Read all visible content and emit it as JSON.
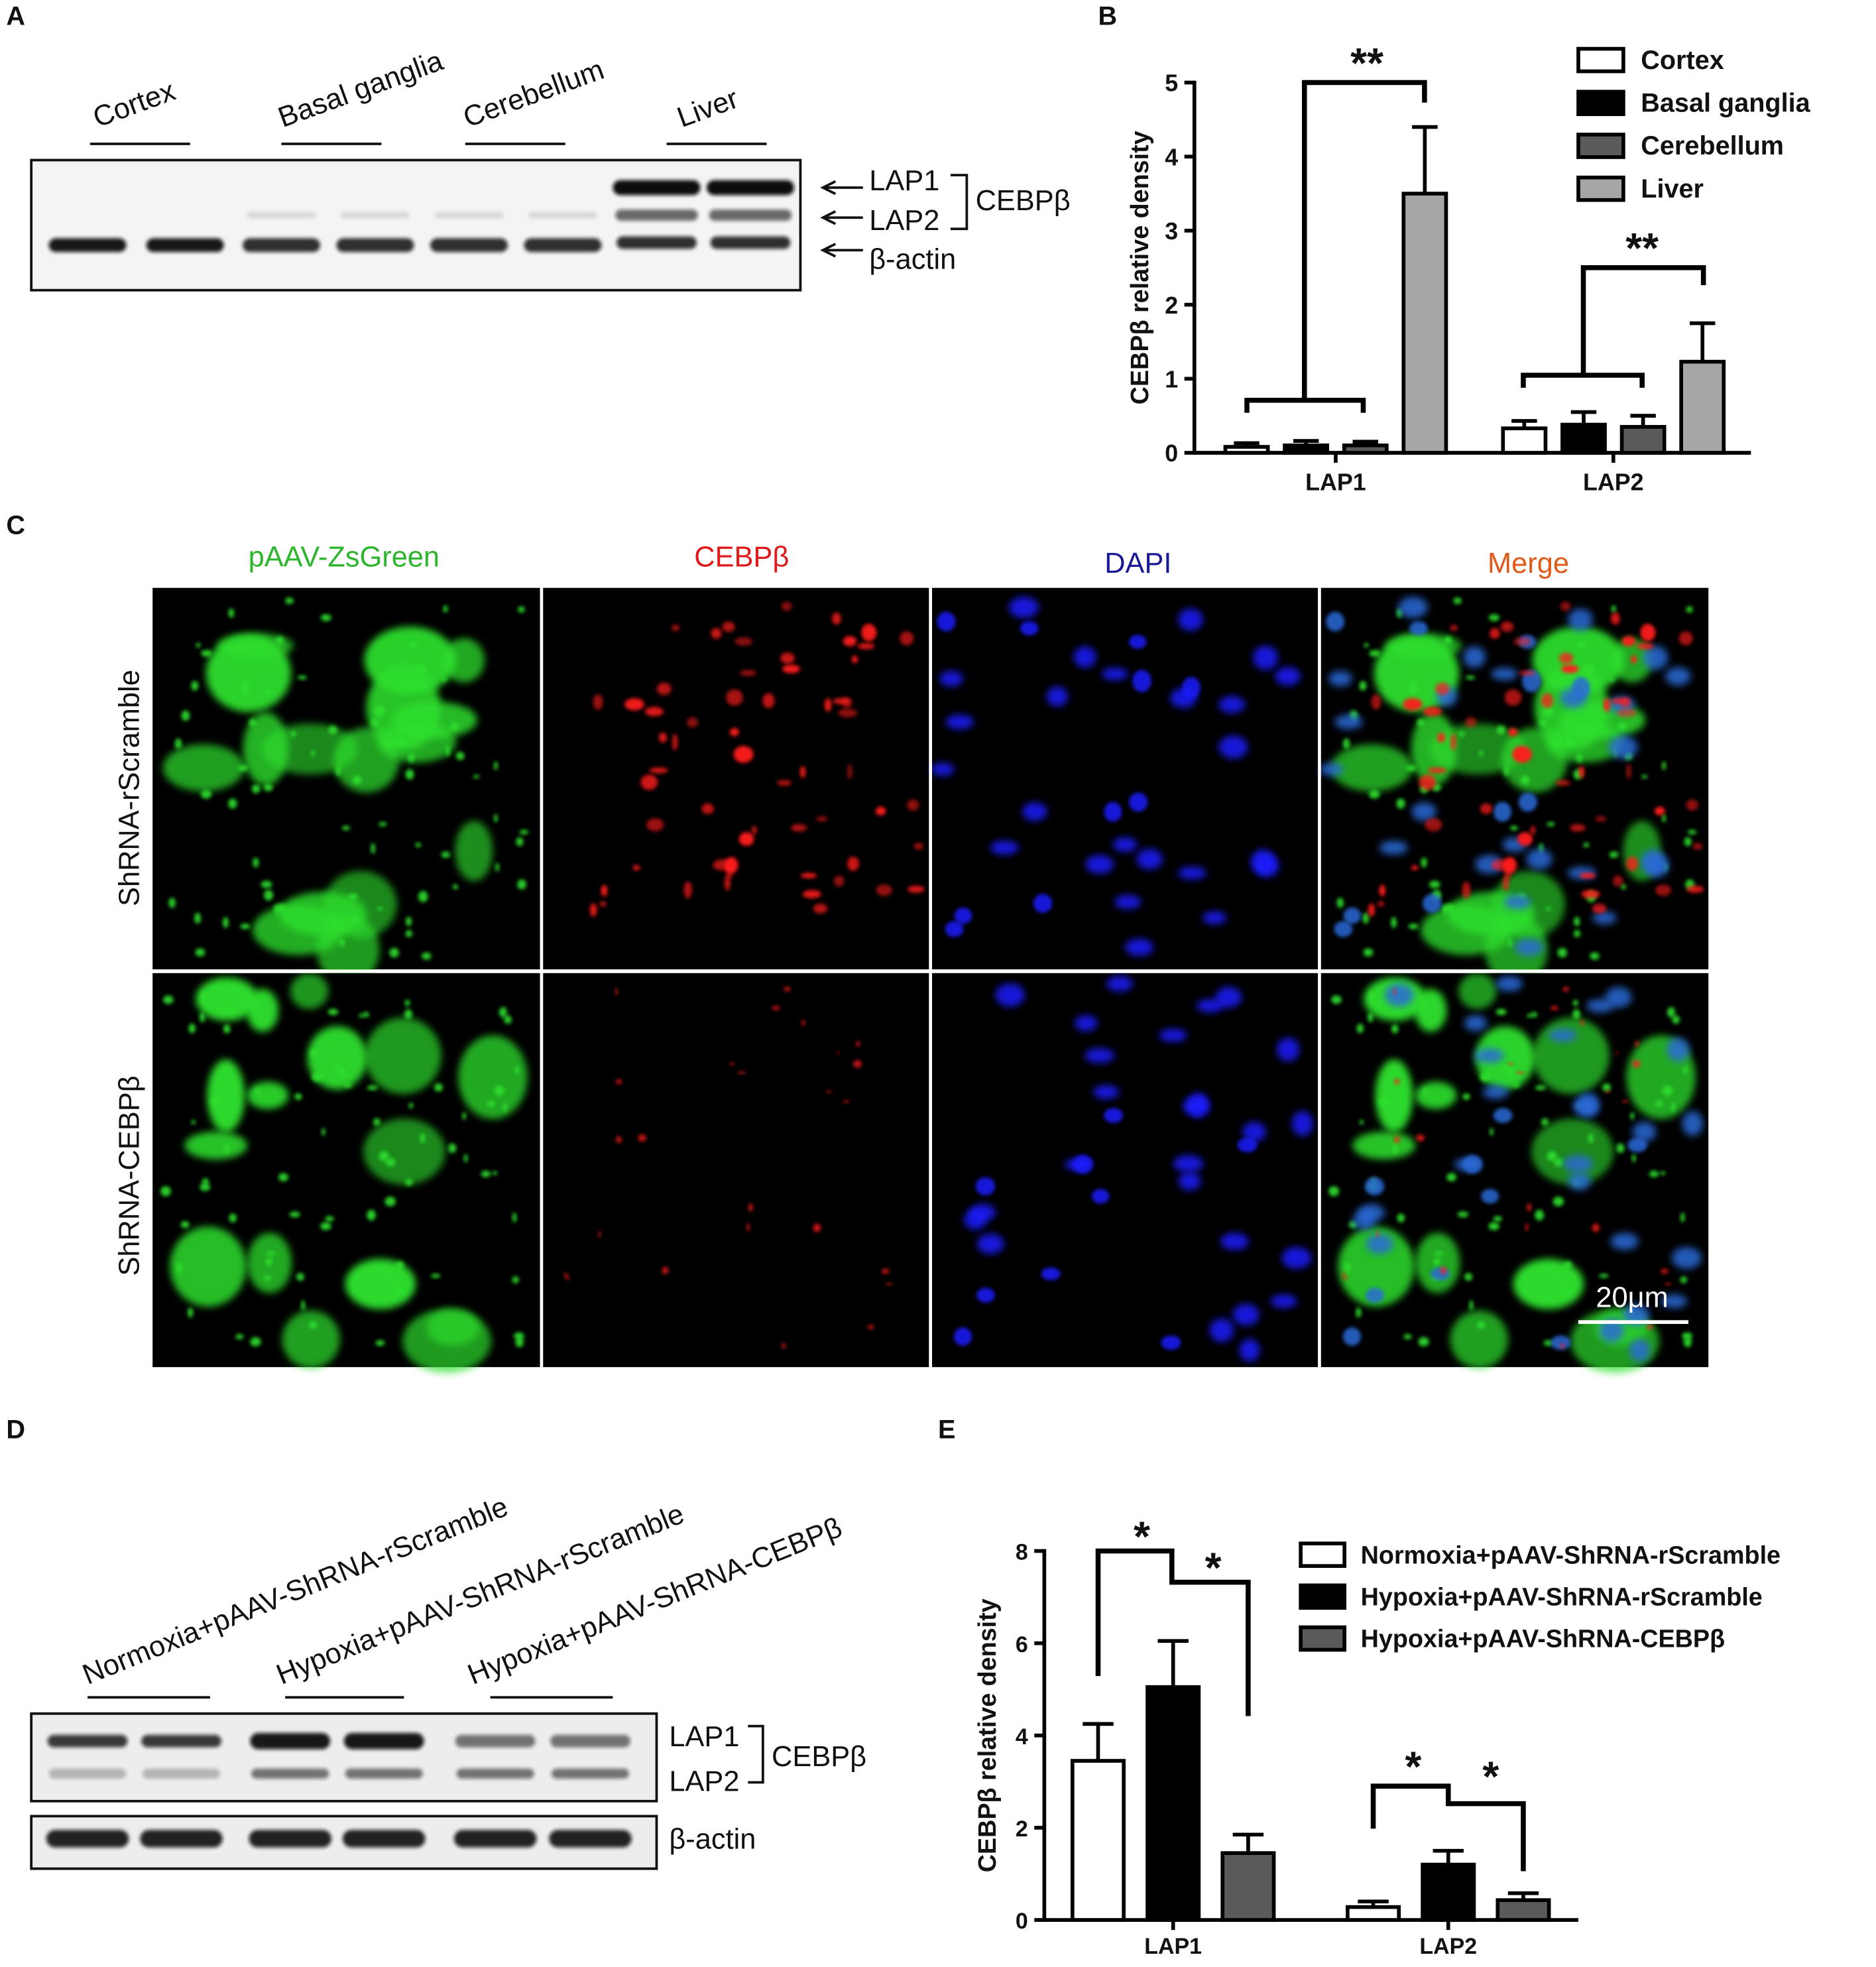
{
  "panel_labels": [
    "A",
    "B",
    "C",
    "D",
    "E"
  ],
  "blot_a": {
    "lanes": [
      "Cortex",
      "Basal ganglia",
      "Cerebellum",
      "Liver"
    ],
    "bands": [
      "LAP1",
      "LAP2",
      "β-actin"
    ],
    "protein": "CEBPβ"
  },
  "panel_c": {
    "columns": [
      "pAAV-ZsGreen",
      "CEBPβ",
      "DAPI",
      "Merge"
    ],
    "rows": [
      "ShRNA-rScramble",
      "ShRNA-CEBPβ"
    ],
    "scale_bar": "20μm"
  },
  "blot_d": {
    "lanes": [
      "Normoxia+pAAV-ShRNA-rScramble",
      "Hypoxia+pAAV-ShRNA-rScramble",
      "Hypoxia+pAAV-ShRNA-CEBPβ"
    ],
    "bands": [
      "LAP1",
      "LAP2",
      "β-actin"
    ],
    "protein": "CEBPβ"
  },
  "chart_data": [
    {
      "type": "bar",
      "ylabel": "CEBPβ relative density",
      "categories": [
        "LAP1",
        "LAP2"
      ],
      "series": [
        {
          "name": "Cortex",
          "color": "#ffffff",
          "values": [
            0.08,
            0.33
          ],
          "errors": [
            0.05,
            0.1
          ]
        },
        {
          "name": "Basal ganglia",
          "color": "#000000",
          "values": [
            0.1,
            0.38
          ],
          "errors": [
            0.06,
            0.17
          ]
        },
        {
          "name": "Cerebellum",
          "color": "#5a5a5a",
          "values": [
            0.1,
            0.35
          ],
          "errors": [
            0.05,
            0.15
          ]
        },
        {
          "name": "Liver",
          "color": "#a6a6a6",
          "values": [
            3.5,
            1.23
          ],
          "errors": [
            0.9,
            0.52
          ]
        }
      ],
      "ylim": [
        0,
        5
      ],
      "yticks": [
        0,
        1,
        2,
        3,
        4,
        5
      ],
      "annotations": [
        "**",
        "**"
      ]
    },
    {
      "type": "bar",
      "ylabel": "CEBPβ relative density",
      "categories": [
        "LAP1",
        "LAP2"
      ],
      "series": [
        {
          "name": "Normoxia+pAAV-ShRNA-rScramble",
          "color": "#ffffff",
          "values": [
            3.45,
            0.28
          ],
          "errors": [
            0.8,
            0.12
          ]
        },
        {
          "name": "Hypoxia+pAAV-ShRNA-rScramble",
          "color": "#000000",
          "values": [
            5.05,
            1.2
          ],
          "errors": [
            1.0,
            0.3
          ]
        },
        {
          "name": "Hypoxia+pAAV-ShRNA-CEBPβ",
          "color": "#5a5a5a",
          "values": [
            1.45,
            0.43
          ],
          "errors": [
            0.4,
            0.15
          ]
        }
      ],
      "ylim": [
        0,
        8
      ],
      "yticks": [
        0,
        2,
        4,
        6,
        8
      ],
      "annotations": [
        "*",
        "*",
        "*",
        "*"
      ]
    }
  ]
}
